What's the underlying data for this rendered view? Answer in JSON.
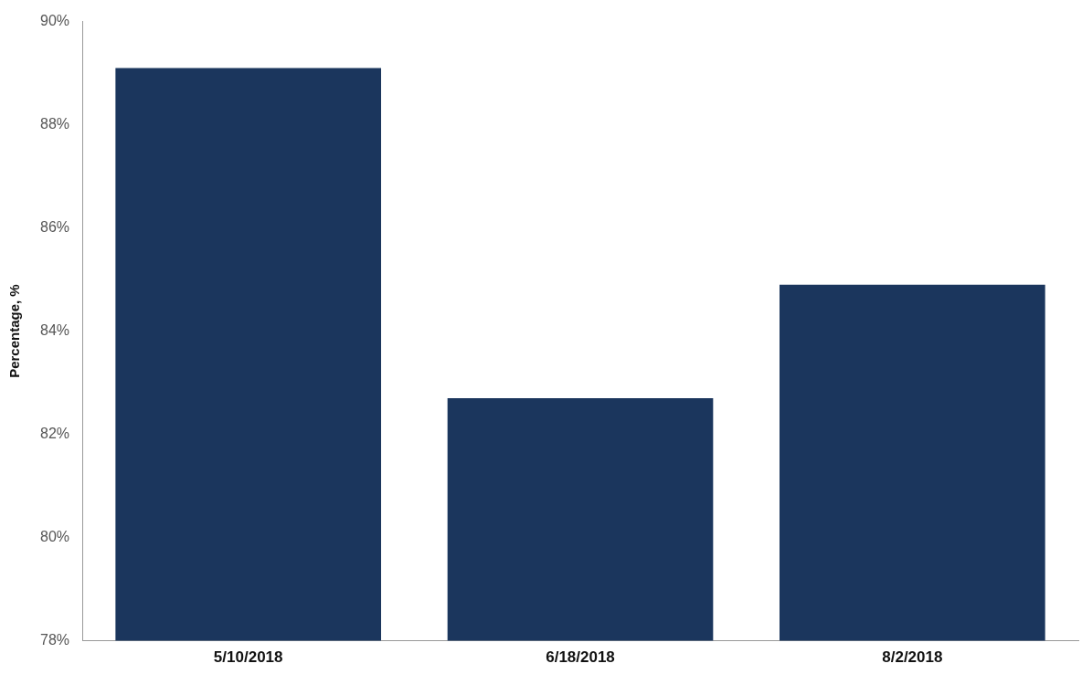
{
  "chart_data": {
    "type": "bar",
    "ylabel": "Percentage, %",
    "categories": [
      "5/10/2018",
      "6/18/2018",
      "8/2/2018"
    ],
    "values": [
      89.1,
      82.7,
      84.9
    ],
    "color": "#1b365d",
    "ylim": [
      78,
      90
    ],
    "yticks": [
      {
        "value": 78,
        "label": "78%"
      },
      {
        "value": 80,
        "label": "80%"
      },
      {
        "value": 82,
        "label": "82%"
      },
      {
        "value": 84,
        "label": "84%"
      },
      {
        "value": 86,
        "label": "86%"
      },
      {
        "value": 88,
        "label": "88%"
      },
      {
        "value": 90,
        "label": "90%"
      }
    ],
    "grid": false,
    "legend": false
  }
}
